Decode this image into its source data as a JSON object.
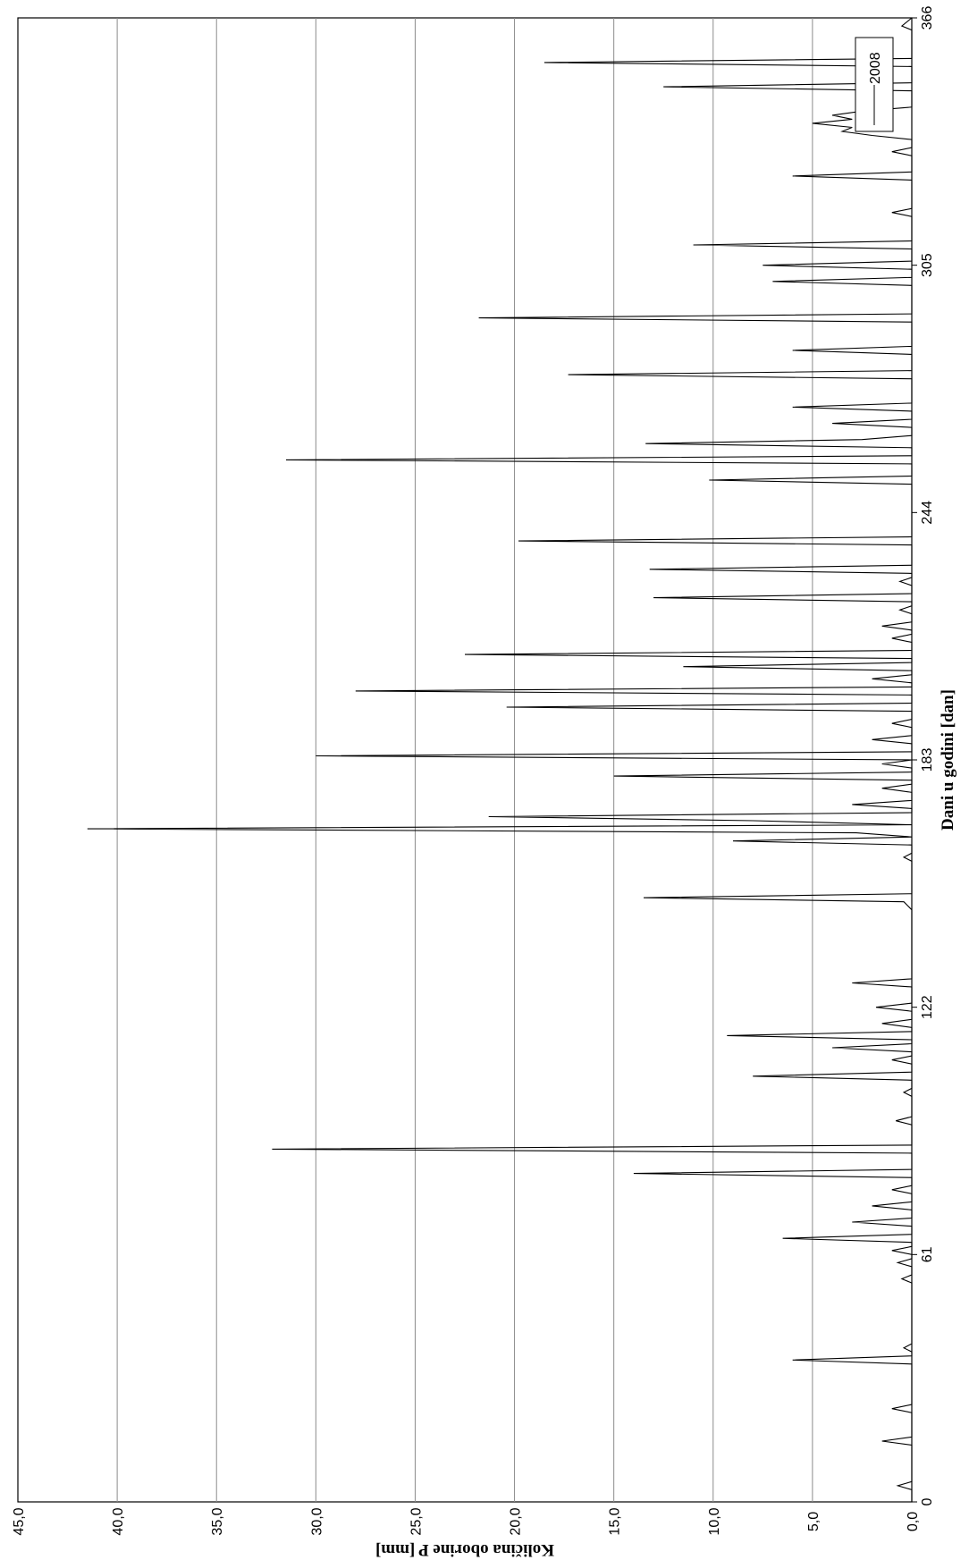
{
  "chart_data": {
    "type": "line",
    "xlabel": "Dani u godini [dan]",
    "ylabel": "Količina oborine P [mm]",
    "xlim": [
      0,
      366
    ],
    "ylim": [
      0,
      45
    ],
    "x_ticks": [
      "0",
      "61",
      "122",
      "183",
      "244",
      "305",
      "366"
    ],
    "y_ticks": [
      "0,0",
      "5,0",
      "10,0",
      "15,0",
      "20,0",
      "25,0",
      "30,0",
      "35,0",
      "40,0",
      "45,0"
    ],
    "grid": true,
    "legend_position": "top-right",
    "series": [
      {
        "name": "2008",
        "color": "#000000",
        "points": [
          [
            0,
            0
          ],
          [
            3,
            0
          ],
          [
            4,
            0.7
          ],
          [
            5,
            0
          ],
          [
            14,
            0
          ],
          [
            15,
            1.5
          ],
          [
            16,
            0
          ],
          [
            22,
            0
          ],
          [
            23,
            1.0
          ],
          [
            24,
            0
          ],
          [
            34,
            0
          ],
          [
            35,
            6.0
          ],
          [
            36,
            0
          ],
          [
            37,
            0
          ],
          [
            38,
            0.4
          ],
          [
            39,
            0
          ],
          [
            54,
            0
          ],
          [
            55,
            0.5
          ],
          [
            56,
            0
          ],
          [
            58,
            0
          ],
          [
            59,
            0.7
          ],
          [
            60,
            0
          ],
          [
            61,
            0
          ],
          [
            62,
            1.0
          ],
          [
            63,
            0
          ],
          [
            64,
            0
          ],
          [
            65,
            6.5
          ],
          [
            66,
            0
          ],
          [
            68,
            0
          ],
          [
            69,
            3.0
          ],
          [
            70,
            0
          ],
          [
            72,
            0
          ],
          [
            73,
            2.0
          ],
          [
            74,
            0
          ],
          [
            76,
            0
          ],
          [
            77,
            1.0
          ],
          [
            78,
            0
          ],
          [
            80,
            0
          ],
          [
            81,
            14.0
          ],
          [
            82,
            0
          ],
          [
            86,
            0
          ],
          [
            87,
            32.2
          ],
          [
            88,
            0
          ],
          [
            93,
            0
          ],
          [
            94,
            0.8
          ],
          [
            95,
            0
          ],
          [
            100,
            0
          ],
          [
            101,
            0.4
          ],
          [
            102,
            0
          ],
          [
            104,
            0
          ],
          [
            105,
            8.0
          ],
          [
            106,
            0
          ],
          [
            108,
            0
          ],
          [
            109,
            1.0
          ],
          [
            110,
            0
          ],
          [
            111,
            0
          ],
          [
            112,
            4.0
          ],
          [
            113,
            0
          ],
          [
            114,
            0
          ],
          [
            115,
            9.3
          ],
          [
            116,
            0
          ],
          [
            117,
            0
          ],
          [
            118,
            1.5
          ],
          [
            119,
            0
          ],
          [
            121,
            0
          ],
          [
            122,
            1.8
          ],
          [
            123,
            0
          ],
          [
            127,
            0
          ],
          [
            128,
            3.0
          ],
          [
            129,
            0
          ],
          [
            146,
            0
          ],
          [
            148,
            0.4
          ],
          [
            149,
            13.5
          ],
          [
            150,
            0
          ],
          [
            158,
            0
          ],
          [
            159,
            0.4
          ],
          [
            160,
            0
          ],
          [
            162,
            0
          ],
          [
            163,
            9.0
          ],
          [
            164,
            0
          ],
          [
            165,
            2.8
          ],
          [
            166,
            41.5
          ],
          [
            167,
            0
          ],
          [
            168,
            8.0
          ],
          [
            169,
            21.3
          ],
          [
            170,
            0
          ],
          [
            171,
            0
          ],
          [
            172,
            3.0
          ],
          [
            173,
            0
          ],
          [
            175,
            0
          ],
          [
            176,
            1.5
          ],
          [
            177,
            0
          ],
          [
            178,
            0
          ],
          [
            179,
            15.0
          ],
          [
            180,
            0
          ],
          [
            181,
            0
          ],
          [
            182,
            1.5
          ],
          [
            183,
            0
          ],
          [
            184,
            30.0
          ],
          [
            185,
            0
          ],
          [
            187,
            0
          ],
          [
            188,
            2.0
          ],
          [
            189,
            0
          ],
          [
            191,
            0
          ],
          [
            192,
            1.0
          ],
          [
            193,
            0
          ],
          [
            195,
            0
          ],
          [
            196,
            20.4
          ],
          [
            197,
            0
          ],
          [
            199,
            0
          ],
          [
            200,
            28.0
          ],
          [
            201,
            0
          ],
          [
            202,
            0
          ],
          [
            203,
            2.0
          ],
          [
            204,
            0
          ],
          [
            205,
            0
          ],
          [
            206,
            11.5
          ],
          [
            207,
            0
          ],
          [
            208,
            0
          ],
          [
            209,
            22.5
          ],
          [
            210,
            0
          ],
          [
            212,
            0
          ],
          [
            213,
            1.0
          ],
          [
            214,
            0
          ],
          [
            215,
            0
          ],
          [
            216,
            1.5
          ],
          [
            217,
            0
          ],
          [
            219,
            0
          ],
          [
            220,
            0.6
          ],
          [
            221,
            0
          ],
          [
            222,
            0
          ],
          [
            223,
            13.0
          ],
          [
            224,
            0
          ],
          [
            226,
            0
          ],
          [
            227,
            0.6
          ],
          [
            228,
            0
          ],
          [
            229,
            0
          ],
          [
            230,
            13.2
          ],
          [
            231,
            0
          ],
          [
            236,
            0
          ],
          [
            237,
            19.8
          ],
          [
            238,
            0
          ],
          [
            251,
            0
          ],
          [
            252,
            10.2
          ],
          [
            253,
            0
          ],
          [
            256,
            0
          ],
          [
            257,
            31.5
          ],
          [
            258,
            0
          ],
          [
            260,
            0
          ],
          [
            261,
            13.4
          ],
          [
            262,
            2.5
          ],
          [
            263,
            0
          ],
          [
            265,
            0
          ],
          [
            266,
            4.0
          ],
          [
            267,
            0
          ],
          [
            269,
            0
          ],
          [
            270,
            6.0
          ],
          [
            271,
            0
          ],
          [
            277,
            0
          ],
          [
            278,
            17.3
          ],
          [
            279,
            0
          ],
          [
            283,
            0
          ],
          [
            284,
            6.0
          ],
          [
            285,
            0
          ],
          [
            291,
            0
          ],
          [
            292,
            21.8
          ],
          [
            293,
            0
          ],
          [
            300,
            0
          ],
          [
            301,
            7.0
          ],
          [
            302,
            0
          ],
          [
            304,
            0
          ],
          [
            305,
            7.5
          ],
          [
            306,
            0
          ],
          [
            309,
            0
          ],
          [
            310,
            11.0
          ],
          [
            311,
            0
          ],
          [
            317,
            0
          ],
          [
            318,
            1.0
          ],
          [
            319,
            0
          ],
          [
            326,
            0
          ],
          [
            327,
            6.0
          ],
          [
            328,
            0
          ],
          [
            332,
            0
          ],
          [
            333,
            1.0
          ],
          [
            334,
            0
          ],
          [
            336,
            0
          ],
          [
            337,
            2.0
          ],
          [
            338,
            3.5
          ],
          [
            339,
            3.0
          ],
          [
            340,
            5.0
          ],
          [
            341,
            3.0
          ],
          [
            342,
            4.0
          ],
          [
            343,
            2.5
          ],
          [
            344,
            0
          ],
          [
            348,
            0
          ],
          [
            349,
            12.5
          ],
          [
            350,
            0
          ],
          [
            354,
            0
          ],
          [
            355,
            18.5
          ],
          [
            356,
            0
          ],
          [
            363,
            0
          ],
          [
            364,
            0.5
          ],
          [
            366,
            0
          ]
        ]
      }
    ]
  }
}
